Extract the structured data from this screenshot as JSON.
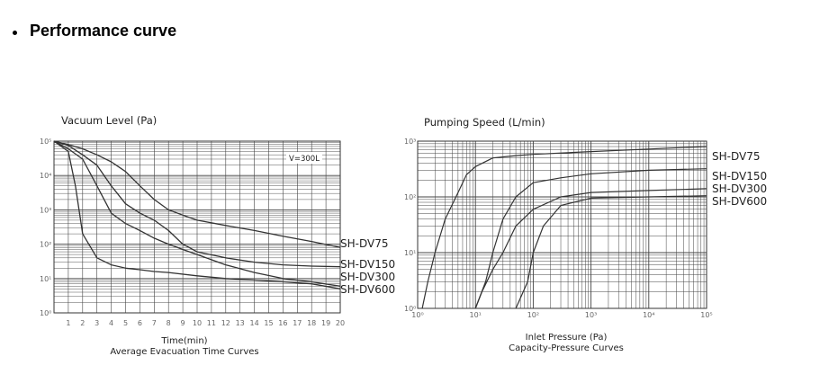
{
  "header": {
    "title": "Performance curve"
  },
  "chart_data": [
    {
      "type": "line",
      "title": "Vacuum Level (Pa)",
      "xlabel": "Time(min)",
      "caption": "Average Evacuation Time Curves",
      "annotation": "V=300L",
      "x_ticks": [
        "1",
        "2",
        "3",
        "4",
        "5",
        "6",
        "7",
        "8",
        "9",
        "10",
        "11",
        "12",
        "13",
        "14",
        "15",
        "16",
        "17",
        "18",
        "19",
        "20"
      ],
      "y_ticks": [
        "10⁵",
        "10⁴",
        "10³",
        "10²",
        "10¹",
        "10⁰"
      ],
      "xlim": [
        0,
        20
      ],
      "ylim_log10": [
        0,
        5
      ],
      "series": [
        {
          "name": "SH-DV75",
          "x": [
            0,
            1,
            2,
            3,
            4,
            5,
            6,
            7,
            8,
            9,
            10,
            12,
            14,
            16,
            18,
            20
          ],
          "y": [
            100000,
            80000,
            60000,
            40000,
            25000,
            13000,
            5000,
            2000,
            1000,
            700,
            500,
            350,
            250,
            170,
            120,
            80
          ]
        },
        {
          "name": "SH-DV150",
          "x": [
            0,
            1,
            2,
            3,
            4,
            5,
            6,
            7,
            8,
            9,
            10,
            12,
            14,
            16,
            18,
            20
          ],
          "y": [
            100000,
            75000,
            40000,
            20000,
            5000,
            1500,
            800,
            500,
            250,
            100,
            60,
            40,
            30,
            25,
            23,
            22
          ]
        },
        {
          "name": "SH-DV300",
          "x": [
            0,
            1,
            2,
            3,
            4,
            5,
            6,
            7,
            8,
            9,
            10,
            12,
            14,
            16,
            18,
            20
          ],
          "y": [
            100000,
            60000,
            30000,
            5000,
            800,
            400,
            250,
            150,
            100,
            70,
            50,
            25,
            15,
            10,
            8,
            6
          ]
        },
        {
          "name": "SH-DV600",
          "x": [
            0,
            1,
            1.5,
            2,
            3,
            4,
            5,
            6,
            7,
            8,
            10,
            12,
            14,
            16,
            18,
            20
          ],
          "y": [
            100000,
            50000,
            5000,
            200,
            40,
            25,
            20,
            18,
            16,
            15,
            12,
            10,
            9,
            8,
            7,
            5
          ]
        }
      ]
    },
    {
      "type": "line",
      "title": "Pumping Speed (L/min)",
      "xlabel": "Inlet Pressure (Pa)",
      "caption": "Capacity-Pressure Curves",
      "x_ticks": [
        "10⁰",
        "10¹",
        "10²",
        "10³",
        "10⁴",
        "10⁵"
      ],
      "y_ticks": [
        "10³",
        "10²",
        "10¹",
        "10⁰"
      ],
      "xlim_log10": [
        0,
        5
      ],
      "ylim_log10": [
        0,
        3
      ],
      "series": [
        {
          "name": "SH-DV75",
          "x": [
            1.2,
            1.5,
            2,
            3,
            5,
            7,
            10,
            20,
            50,
            100,
            1000,
            10000,
            100000
          ],
          "y": [
            1,
            3,
            10,
            40,
            120,
            250,
            350,
            500,
            550,
            580,
            650,
            720,
            800
          ]
        },
        {
          "name": "SH-DV150",
          "x": [
            10,
            15,
            20,
            30,
            50,
            100,
            300,
            1000,
            10000,
            100000
          ],
          "y": [
            1,
            3,
            10,
            40,
            100,
            180,
            220,
            260,
            300,
            320
          ]
        },
        {
          "name": "SH-DV300",
          "x": [
            10,
            13,
            20,
            30,
            50,
            100,
            300,
            1000,
            10000,
            100000
          ],
          "y": [
            1,
            2,
            5,
            10,
            30,
            60,
            100,
            120,
            130,
            140
          ]
        },
        {
          "name": "SH-DV600",
          "x": [
            50,
            80,
            100,
            150,
            300,
            1000,
            10000,
            100000
          ],
          "y": [
            1,
            3,
            10,
            30,
            70,
            95,
            100,
            105
          ]
        }
      ]
    }
  ]
}
